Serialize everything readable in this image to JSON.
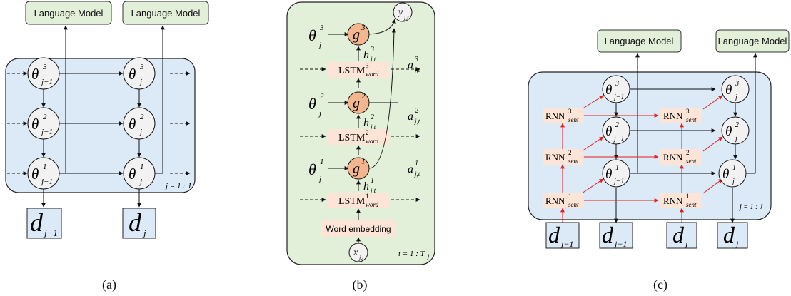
{
  "panel_a": {
    "lm_left": "Language Model",
    "lm_right": "Language Model",
    "theta_sym": "θ",
    "sup3": "3",
    "sup2": "2",
    "sup1": "1",
    "sub_prev": "j−1",
    "sub_j": "j",
    "range": "j = 1 : J",
    "d_sym": "d",
    "caption": "(a)"
  },
  "panel_b": {
    "y_label": "y",
    "y_sub": "j,t",
    "theta_sym": "θ",
    "sub_j": "j",
    "g_sym": "g",
    "h_sym": "h",
    "a_sym": "a",
    "ht_sub": "j,t",
    "sup3": "3",
    "sup2": "2",
    "sup1": "1",
    "lstm": "LSTM",
    "lstm_sub": "word",
    "embedding": "Word embedding",
    "x_label": "x",
    "x_sub": "j,t",
    "range": "t = 1 : T",
    "range_sub": "j",
    "caption": "(b)"
  },
  "panel_c": {
    "lm_left": "Language Model",
    "lm_right": "Language Model",
    "theta_sym": "θ",
    "sup3": "3",
    "sup2": "2",
    "sup1": "1",
    "sub_prev": "j−1",
    "sub_j": "j",
    "rnn": "RNN",
    "rnn_sub": "sent",
    "d_sym": "d",
    "range": "j = 1 : J",
    "caption": "(c)"
  },
  "colors": {
    "lm_fill": "#e2efd9",
    "panel_blue": "#dce9f6",
    "panel_green": "#e2efd9",
    "g_fill": "#f4b68e",
    "pink": "#fce4d6",
    "red_arrow": "#e32019"
  }
}
